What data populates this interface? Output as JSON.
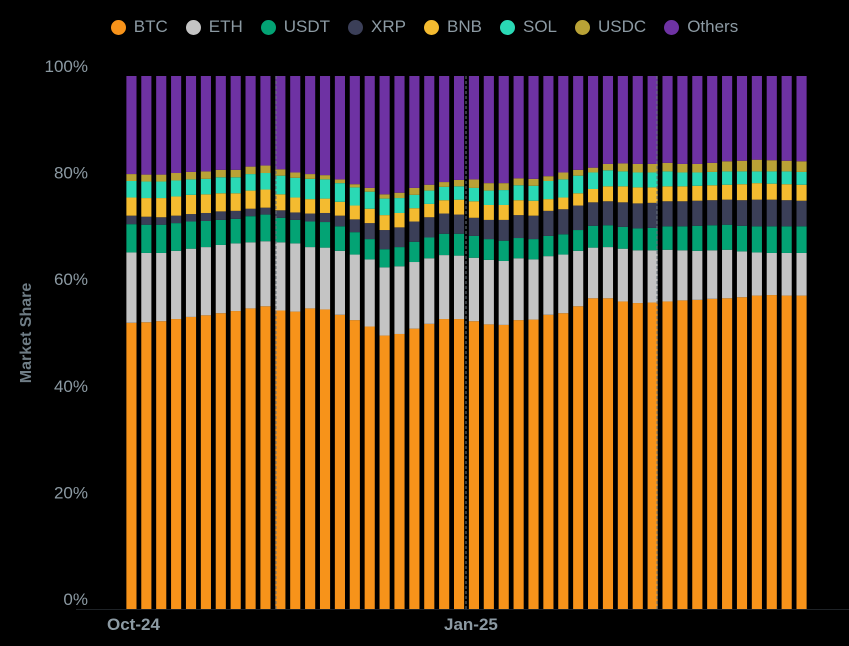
{
  "chart_data": {
    "type": "bar",
    "stacked": true,
    "title": "",
    "xlabel": "",
    "ylabel": "Market Share",
    "ylim": [
      0,
      100
    ],
    "y_ticks": [
      "0%",
      "20%",
      "40%",
      "60%",
      "80%",
      "100%"
    ],
    "x_ticks": [
      {
        "label": "Oct-24",
        "index": 0
      },
      {
        "label": "Jan-25",
        "index": 23
      }
    ],
    "grid": "dashed vertical lines",
    "legend": "top-center",
    "series": [
      {
        "name": "BTC",
        "color": "#f7931a",
        "values": [
          53.7,
          53.8,
          54.0,
          54.4,
          54.8,
          55.1,
          55.5,
          55.9,
          56.4,
          56.8,
          56.0,
          55.8,
          56.4,
          56.2,
          55.2,
          54.2,
          53.0,
          51.3,
          51.6,
          52.6,
          53.5,
          54.4,
          54.4,
          54.0,
          53.4,
          53.3,
          54.2,
          54.3,
          55.2,
          55.5,
          56.8,
          58.3,
          58.3,
          57.7,
          57.4,
          57.5,
          57.7,
          57.9,
          58.0,
          58.2,
          58.3,
          58.5,
          58.8,
          58.9,
          58.8,
          58.8
        ]
      },
      {
        "name": "ETH",
        "color": "#c4c4c4",
        "values": [
          13.2,
          13.0,
          12.8,
          12.8,
          12.8,
          12.8,
          12.8,
          12.7,
          12.4,
          12.2,
          12.8,
          12.8,
          11.5,
          11.6,
          12.0,
          12.3,
          12.6,
          12.8,
          12.7,
          12.5,
          12.3,
          12.0,
          11.9,
          11.9,
          12.1,
          12.0,
          11.6,
          11.3,
          11.0,
          11.0,
          10.4,
          9.5,
          9.6,
          9.9,
          9.9,
          9.8,
          9.7,
          9.4,
          9.2,
          9.1,
          9.1,
          8.6,
          8.1,
          7.9,
          8.0,
          8.0
        ]
      },
      {
        "name": "USDT",
        "color": "#03a374",
        "values": [
          5.3,
          5.3,
          5.3,
          5.2,
          5.1,
          4.9,
          4.7,
          4.6,
          4.9,
          5.0,
          4.6,
          4.4,
          4.8,
          4.8,
          4.6,
          4.2,
          3.8,
          3.4,
          3.6,
          3.8,
          3.9,
          4.0,
          4.1,
          4.1,
          3.9,
          3.8,
          3.8,
          3.8,
          3.8,
          3.8,
          3.9,
          4.1,
          4.1,
          4.1,
          4.1,
          4.2,
          4.4,
          4.5,
          4.7,
          4.7,
          4.7,
          4.8,
          4.9,
          5.0,
          5.0,
          5.0
        ]
      },
      {
        "name": "XRP",
        "color": "#3b3f58",
        "values": [
          1.6,
          1.5,
          1.4,
          1.4,
          1.4,
          1.5,
          1.6,
          1.5,
          1.4,
          1.3,
          1.4,
          1.4,
          1.5,
          1.7,
          2.0,
          2.4,
          3.0,
          3.6,
          3.7,
          3.8,
          3.8,
          3.8,
          3.6,
          3.4,
          3.6,
          3.9,
          4.3,
          4.4,
          4.7,
          4.7,
          4.6,
          4.4,
          4.5,
          4.6,
          4.7,
          4.7,
          4.7,
          4.7,
          4.7,
          4.7,
          4.7,
          4.8,
          5.0,
          5.0,
          4.9,
          4.8
        ]
      },
      {
        "name": "BNB",
        "color": "#f4bb30",
        "values": [
          3.4,
          3.5,
          3.6,
          3.6,
          3.6,
          3.5,
          3.4,
          3.3,
          3.4,
          3.4,
          3.0,
          2.8,
          2.7,
          2.7,
          2.6,
          2.6,
          2.7,
          2.8,
          2.7,
          2.5,
          2.5,
          2.5,
          2.8,
          3.1,
          2.8,
          2.8,
          2.8,
          2.8,
          2.2,
          2.2,
          2.3,
          2.5,
          2.8,
          3.0,
          3.0,
          2.9,
          2.8,
          2.8,
          2.8,
          2.8,
          2.8,
          3.0,
          3.1,
          3.0,
          3.0,
          3.0
        ]
      },
      {
        "name": "SOL",
        "color": "#2ad9b5",
        "values": [
          3.1,
          3.1,
          3.1,
          3.0,
          2.9,
          2.9,
          3.0,
          3.0,
          3.1,
          3.1,
          3.5,
          3.7,
          3.8,
          3.6,
          3.5,
          3.4,
          3.2,
          3.1,
          2.8,
          2.5,
          2.5,
          2.5,
          2.5,
          2.5,
          2.7,
          2.8,
          2.8,
          2.8,
          3.4,
          3.4,
          3.3,
          3.1,
          3.0,
          2.8,
          2.8,
          2.8,
          2.8,
          2.6,
          2.5,
          2.5,
          2.5,
          2.4,
          2.2,
          2.3,
          2.4,
          2.4
        ]
      },
      {
        "name": "USDC",
        "color": "#b9a236",
        "values": [
          1.3,
          1.3,
          1.3,
          1.4,
          1.4,
          1.4,
          1.4,
          1.4,
          1.4,
          1.4,
          1.2,
          1.0,
          0.9,
          0.8,
          0.7,
          0.6,
          0.7,
          0.8,
          1.0,
          1.3,
          1.1,
          0.9,
          1.2,
          1.6,
          1.4,
          1.3,
          1.3,
          1.3,
          0.9,
          1.3,
          1.1,
          0.9,
          1.2,
          1.5,
          1.6,
          1.6,
          1.6,
          1.6,
          1.6,
          1.7,
          1.9,
          2.0,
          2.2,
          2.1,
          2.0,
          2.0
        ]
      },
      {
        "name": "Others",
        "color": "#6e32a3",
        "values": [
          18.4,
          18.5,
          18.5,
          18.2,
          18.0,
          17.9,
          17.6,
          17.6,
          17.0,
          16.8,
          17.5,
          18.1,
          18.4,
          18.6,
          19.4,
          20.3,
          21.0,
          22.2,
          21.9,
          21.0,
          20.4,
          19.9,
          19.5,
          19.4,
          20.1,
          20.1,
          19.2,
          19.3,
          18.8,
          18.1,
          17.6,
          17.2,
          16.5,
          16.4,
          16.5,
          16.5,
          16.3,
          16.5,
          16.5,
          16.3,
          16.0,
          15.9,
          15.7,
          15.8,
          15.9,
          16.0
        ]
      }
    ]
  }
}
